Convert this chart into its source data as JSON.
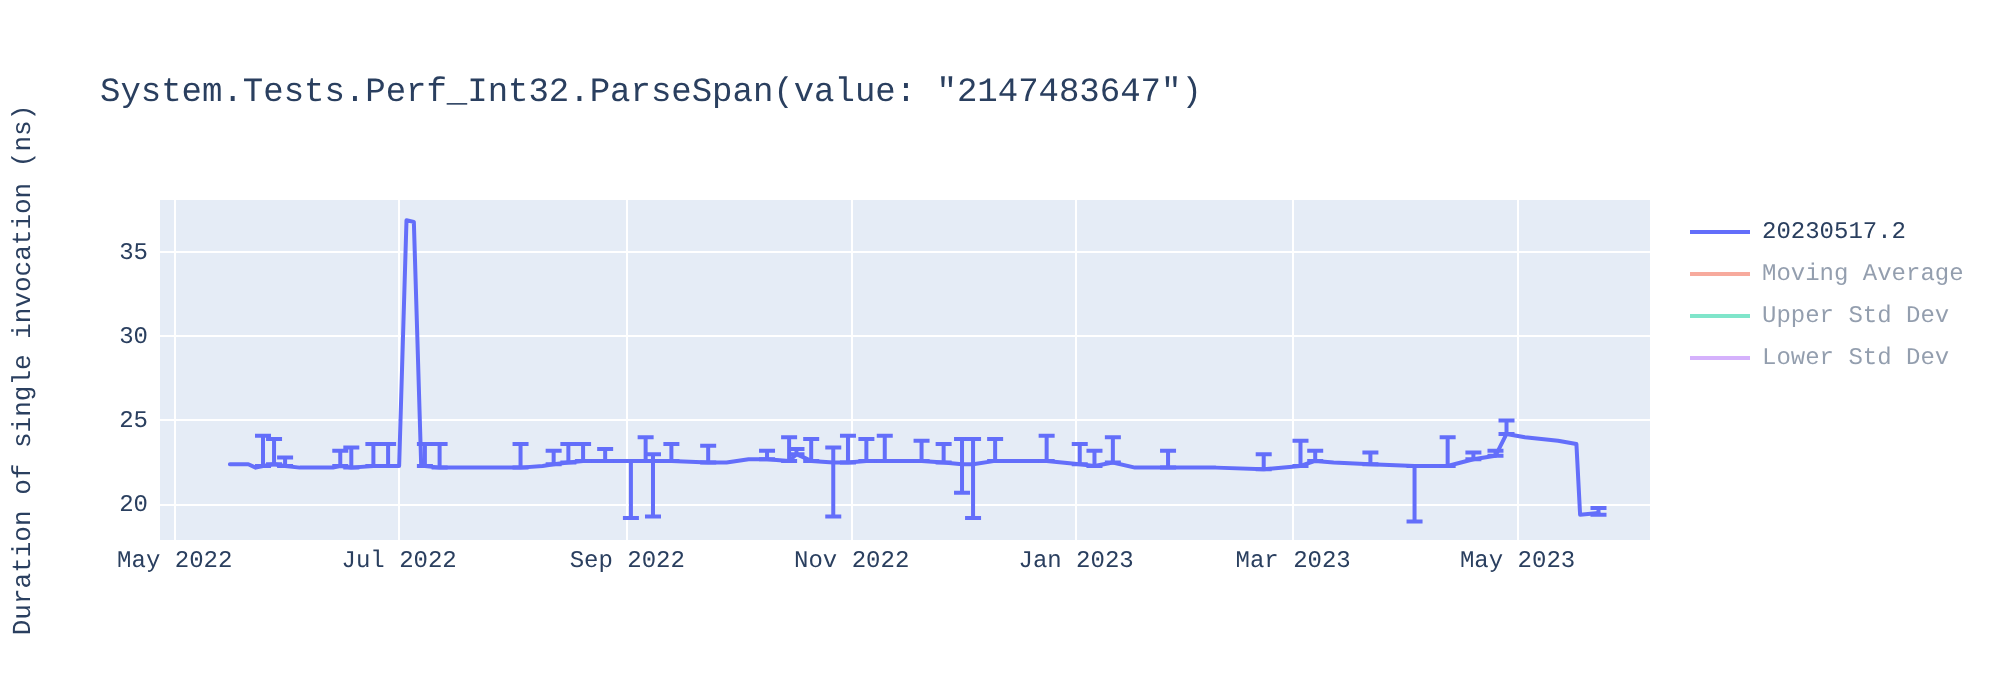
{
  "chart_data": {
    "type": "line",
    "title": "System.Tests.Perf_Int32.ParseSpan(value: \"2147483647\")",
    "ylabel": "Duration of single invocation (ns)",
    "x": [
      "2022-05-16",
      "2022-05-21",
      "2022-05-23",
      "2022-05-25",
      "2022-05-28",
      "2022-05-31",
      "2022-06-04",
      "2022-06-13",
      "2022-06-15",
      "2022-06-18",
      "2022-06-24",
      "2022-06-28",
      "2022-07-01",
      "2022-07-03",
      "2022-07-05",
      "2022-07-07",
      "2022-07-08",
      "2022-07-12",
      "2022-07-23",
      "2022-08-03",
      "2022-08-09",
      "2022-08-12",
      "2022-08-16",
      "2022-08-20",
      "2022-08-26",
      "2022-09-02",
      "2022-09-06",
      "2022-09-08",
      "2022-09-13",
      "2022-09-23",
      "2022-09-28",
      "2022-10-04",
      "2022-10-09",
      "2022-10-15",
      "2022-10-17",
      "2022-10-21",
      "2022-10-27",
      "2022-10-31",
      "2022-11-05",
      "2022-11-10",
      "2022-11-20",
      "2022-11-26",
      "2022-12-01",
      "2022-12-04",
      "2022-12-10",
      "2022-12-24",
      "2023-01-02",
      "2023-01-06",
      "2023-01-11",
      "2023-01-17",
      "2023-01-26",
      "2023-02-08",
      "2023-02-21",
      "2023-03-03",
      "2023-03-07",
      "2023-03-12",
      "2023-03-22",
      "2023-04-03",
      "2023-04-12",
      "2023-04-19",
      "2023-04-25",
      "2023-04-28",
      "2023-05-03",
      "2023-05-12",
      "2023-05-17",
      "2023-05-18",
      "2023-05-23"
    ],
    "series": [
      {
        "name": "20230517.2",
        "color": "#636efa",
        "values": [
          22.4,
          22.4,
          22.2,
          22.3,
          22.4,
          22.3,
          22.2,
          22.2,
          22.3,
          22.2,
          22.3,
          22.3,
          22.3,
          36.9,
          36.8,
          22.3,
          22.3,
          22.2,
          22.2,
          22.2,
          22.3,
          22.4,
          22.5,
          22.6,
          22.6,
          22.6,
          22.6,
          22.6,
          22.6,
          22.5,
          22.5,
          22.7,
          22.7,
          22.6,
          23.0,
          22.6,
          22.5,
          22.5,
          22.6,
          22.6,
          22.6,
          22.5,
          22.4,
          22.4,
          22.6,
          22.6,
          22.4,
          22.3,
          22.5,
          22.2,
          22.2,
          22.2,
          22.1,
          22.3,
          22.6,
          22.5,
          22.4,
          22.3,
          22.3,
          22.7,
          22.9,
          24.2,
          24.0,
          23.8,
          23.6,
          19.4,
          19.5
        ],
        "errors": [
          null,
          null,
          null,
          [
            22.3,
            24.1
          ],
          [
            22.4,
            23.9
          ],
          [
            22.3,
            22.8
          ],
          null,
          null,
          [
            22.3,
            23.2
          ],
          [
            22.2,
            23.4
          ],
          [
            22.3,
            23.6
          ],
          [
            22.3,
            23.6
          ],
          null,
          null,
          null,
          null,
          [
            22.3,
            23.6
          ],
          [
            22.2,
            23.6
          ],
          null,
          [
            22.2,
            23.6
          ],
          null,
          [
            22.4,
            23.2
          ],
          [
            22.5,
            23.6
          ],
          [
            22.6,
            23.6
          ],
          [
            22.6,
            23.3
          ],
          [
            19.2,
            22.6
          ],
          [
            22.6,
            24.0
          ],
          [
            19.3,
            23.0
          ],
          [
            22.6,
            23.6
          ],
          [
            22.5,
            23.5
          ],
          null,
          null,
          [
            22.7,
            23.2
          ],
          [
            22.6,
            24.0
          ],
          [
            23.0,
            23.3
          ],
          [
            22.6,
            23.9
          ],
          [
            19.3,
            23.4
          ],
          [
            22.5,
            24.1
          ],
          [
            22.6,
            23.9
          ],
          [
            22.6,
            24.1
          ],
          [
            22.6,
            23.8
          ],
          [
            22.5,
            23.6
          ],
          [
            20.7,
            23.9
          ],
          [
            19.2,
            23.9
          ],
          [
            22.6,
            23.9
          ],
          [
            22.6,
            24.1
          ],
          [
            22.4,
            23.6
          ],
          [
            22.3,
            23.2
          ],
          [
            22.5,
            24.0
          ],
          null,
          [
            22.2,
            23.2
          ],
          null,
          [
            22.1,
            23.0
          ],
          [
            22.3,
            23.8
          ],
          [
            22.6,
            23.2
          ],
          null,
          [
            22.4,
            23.1
          ],
          [
            19.0,
            22.3
          ],
          [
            22.3,
            24.0
          ],
          [
            22.7,
            23.1
          ],
          [
            22.9,
            23.2
          ],
          [
            24.2,
            25.0
          ],
          null,
          null,
          null,
          null,
          [
            19.4,
            19.8
          ]
        ]
      },
      {
        "name": "Moving Average",
        "color": "#ef553b",
        "values": [
          null,
          null,
          null,
          null,
          null,
          null,
          null,
          null,
          null,
          null,
          null,
          null,
          null,
          null,
          null,
          null,
          null,
          null,
          null,
          null,
          null,
          null,
          null,
          null,
          null,
          null,
          null,
          null,
          null,
          null,
          null,
          null,
          null,
          null,
          null,
          null,
          null,
          null,
          null,
          null,
          null,
          null,
          null,
          null,
          null,
          null,
          null,
          null,
          null,
          null,
          null,
          null,
          null,
          null,
          null,
          null,
          null,
          null,
          null,
          null,
          null,
          null,
          null,
          null,
          null,
          null,
          null
        ]
      },
      {
        "name": "Upper Std Dev",
        "color": "#00cc96",
        "values": [
          null,
          null,
          null,
          null,
          null,
          null,
          null,
          null,
          null,
          null,
          null,
          null,
          null,
          null,
          null,
          null,
          null,
          null,
          null,
          null,
          null,
          null,
          null,
          null,
          null,
          null,
          null,
          null,
          null,
          null,
          null,
          null,
          null,
          null,
          null,
          null,
          null,
          null,
          null,
          null,
          null,
          null,
          null,
          null,
          null,
          null,
          null,
          null,
          null,
          null,
          null,
          null,
          null,
          null,
          null,
          null,
          null,
          null,
          null,
          null,
          null,
          null,
          null,
          null,
          null,
          null,
          null
        ]
      },
      {
        "name": "Lower Std Dev",
        "color": "#ab63fa",
        "values": [
          null,
          null,
          null,
          null,
          null,
          null,
          null,
          null,
          null,
          null,
          null,
          null,
          null,
          null,
          null,
          null,
          null,
          null,
          null,
          null,
          null,
          null,
          null,
          null,
          null,
          null,
          null,
          null,
          null,
          null,
          null,
          null,
          null,
          null,
          null,
          null,
          null,
          null,
          null,
          null,
          null,
          null,
          null,
          null,
          null,
          null,
          null,
          null,
          null,
          null,
          null,
          null,
          null,
          null,
          null,
          null,
          null,
          null,
          null,
          null,
          null,
          null,
          null,
          null,
          null,
          null,
          null
        ]
      }
    ],
    "xlim": [
      "2022-04-27",
      "2023-06-06"
    ],
    "xticks": [
      {
        "value": "2022-05-01",
        "label": "May 2022"
      },
      {
        "value": "2022-07-01",
        "label": "Jul 2022"
      },
      {
        "value": "2022-09-01",
        "label": "Sep 2022"
      },
      {
        "value": "2022-11-01",
        "label": "Nov 2022"
      },
      {
        "value": "2023-01-01",
        "label": "Jan 2023"
      },
      {
        "value": "2023-03-01",
        "label": "Mar 2023"
      },
      {
        "value": "2023-05-01",
        "label": "May 2023"
      }
    ],
    "ylim": [
      17.9,
      38.1
    ],
    "yticks": [
      20,
      25,
      30,
      35
    ],
    "grid": true,
    "legend": "top right",
    "marker": "none"
  }
}
